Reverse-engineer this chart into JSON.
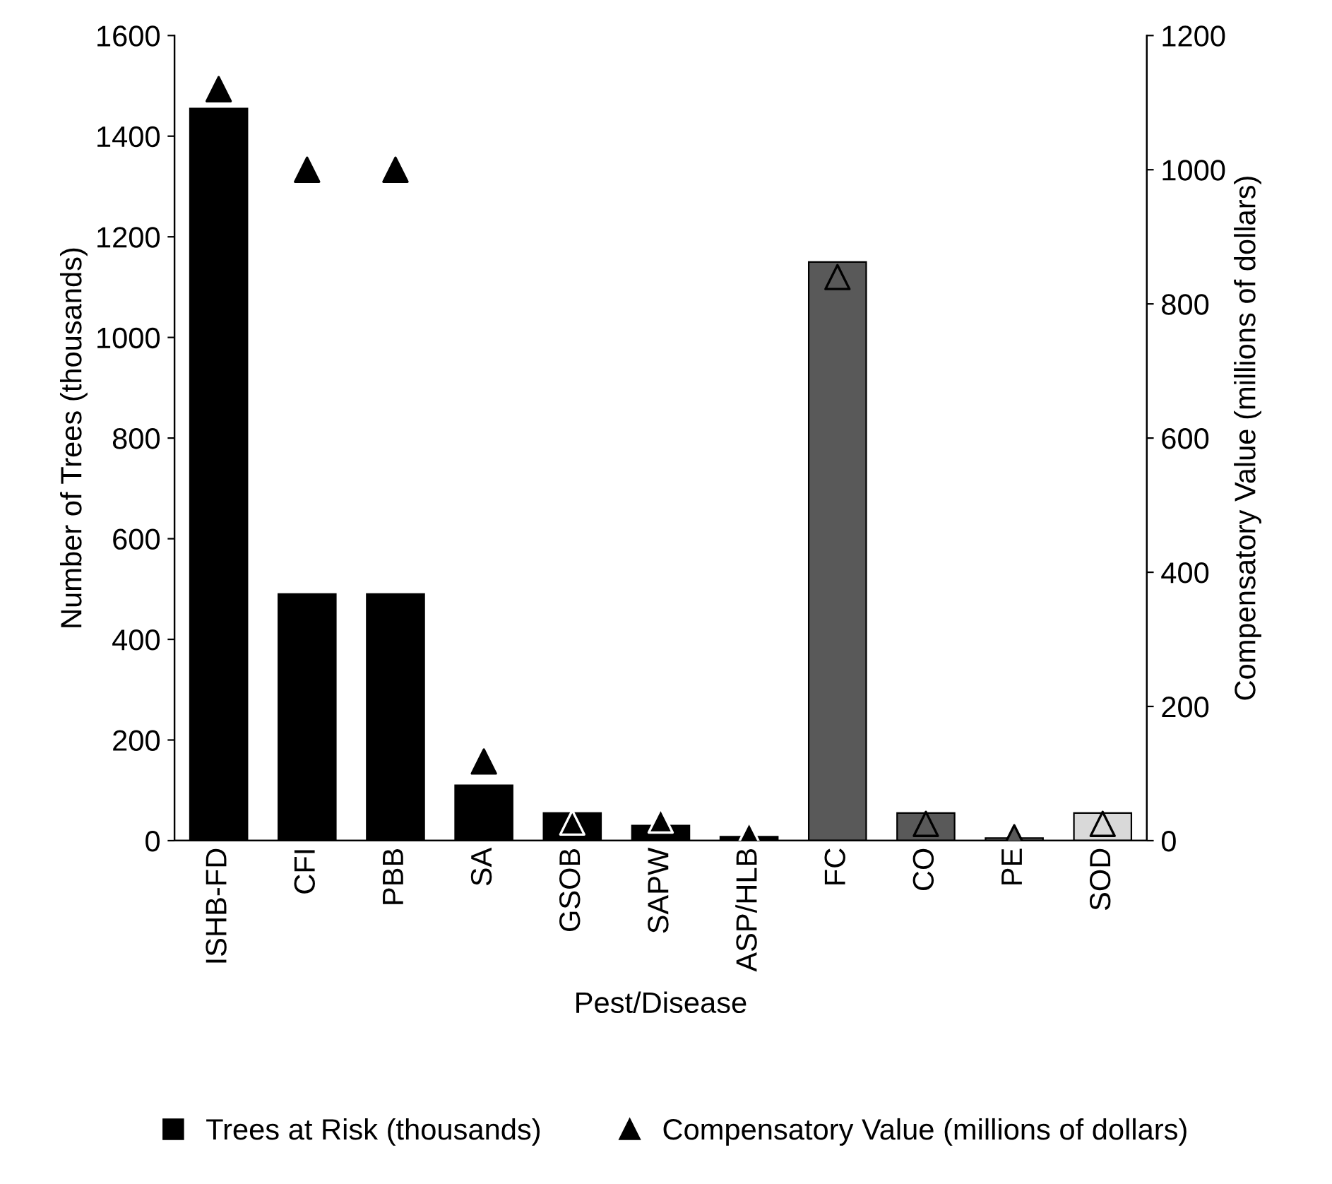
{
  "chart_data": {
    "type": "bar",
    "xlabel": "Pest/Disease",
    "ylabel": "Number of Trees (thousands)",
    "y2label": "Compensatory Value (millions of dollars)",
    "categories": [
      "ISHB-FD",
      "CFI",
      "PBB",
      "SA",
      "GSOB",
      "SAPW",
      "ASP/HLB",
      "FC",
      "CO",
      "PE",
      "SOD"
    ],
    "series": [
      {
        "name": "Trees at Risk (thousands)",
        "color": "#000000",
        "colors": [
          "#000000",
          "#000000",
          "#000000",
          "#000000",
          "#000000",
          "#000000",
          "#000000",
          "#595959",
          "#595959",
          "#7f7f7f",
          "#d9d9d9"
        ],
        "values": [
          1455,
          490,
          490,
          110,
          55,
          30,
          8,
          1150,
          55,
          5,
          55
        ]
      },
      {
        "name": "Compensatory Value (millions of dollars)",
        "type": "scatter",
        "marker": "triangle",
        "axis": "y2",
        "color": "#000000",
        "colors": [
          "#000000",
          "#000000",
          "#000000",
          "#000000",
          "#000000",
          "#000000",
          "#000000",
          "#595959",
          "#595959",
          "#595959",
          "#d9d9d9"
        ],
        "values": [
          1120,
          1000,
          1000,
          118,
          27,
          30,
          10,
          840,
          25,
          5,
          25
        ]
      }
    ],
    "ylim": [
      0,
      1600
    ],
    "yticks": [
      0,
      200,
      400,
      600,
      800,
      1000,
      1200,
      1400,
      1600
    ],
    "y2lim": [
      0,
      1200
    ],
    "y2ticks": [
      0,
      200,
      400,
      600,
      800,
      1000,
      1200
    ],
    "grid": false,
    "legend": "bottom"
  }
}
